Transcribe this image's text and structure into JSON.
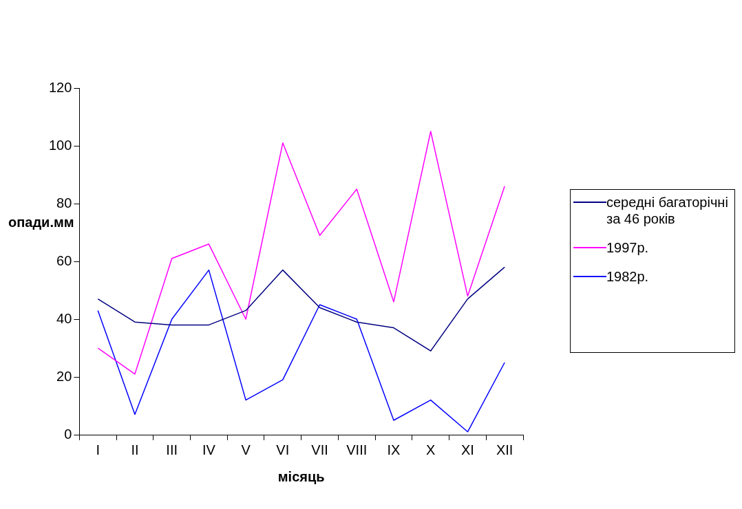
{
  "chart_data": {
    "type": "line",
    "xlabel": "місяць",
    "ylabel": "опади.мм",
    "categories": [
      "I",
      "II",
      "III",
      "IV",
      "V",
      "VI",
      "VII",
      "VIII",
      "IX",
      "X",
      "XI",
      "XII"
    ],
    "series": [
      {
        "name": "середні багаторічні за 46 років",
        "color": "#000080",
        "values": [
          47,
          39,
          38,
          38,
          43,
          57,
          44,
          39,
          37,
          29,
          47,
          58
        ]
      },
      {
        "name": "1997р.",
        "color": "#ff00ff",
        "values": [
          30,
          21,
          61,
          66,
          40,
          101,
          69,
          85,
          46,
          105,
          48,
          86
        ]
      },
      {
        "name": "1982р.",
        "color": "#0000ff",
        "values": [
          43,
          7,
          40,
          57,
          12,
          19,
          45,
          40,
          5,
          12,
          1,
          25
        ]
      }
    ],
    "ylim": [
      0,
      120
    ],
    "yticks": [
      0,
      20,
      40,
      60,
      80,
      100,
      120
    ],
    "grid": false,
    "legend": "right",
    "marker": "none",
    "line_style": "solid"
  }
}
